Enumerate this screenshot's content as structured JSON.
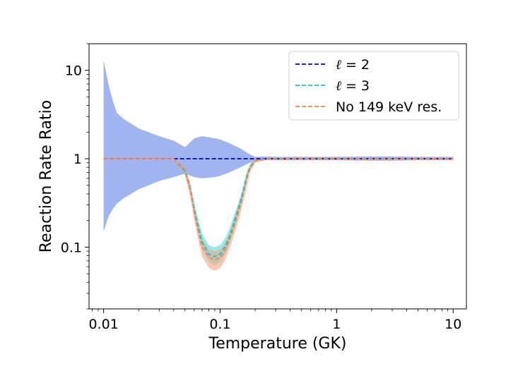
{
  "chart_data": {
    "type": "line",
    "title": "",
    "xlabel": "Temperature (GK)",
    "ylabel": "Reaction Rate Ratio",
    "xscale": "log",
    "yscale": "log",
    "xlim": [
      0.0075,
      13
    ],
    "ylim": [
      0.02,
      20
    ],
    "xticks": [
      0.01,
      0.1,
      1,
      10
    ],
    "xtick_labels": [
      "0.01",
      "0.1",
      "1",
      "10"
    ],
    "yticks": [
      0.1,
      1,
      10
    ],
    "ytick_labels": [
      "0.1",
      "1",
      "10"
    ],
    "legend_position": "top-right",
    "series": [
      {
        "name": "ℓ = 2",
        "legend_symbol": "ℓ",
        "legend_math": "= 2",
        "color": "#0000cc",
        "fill_color": "#4169e1",
        "fill_opacity": 0.5,
        "x": [
          0.01,
          0.011,
          0.012,
          0.013,
          0.015,
          0.02,
          0.03,
          0.04,
          0.05,
          0.06,
          0.07,
          0.08,
          0.09,
          0.1,
          0.12,
          0.15,
          0.18,
          0.2,
          0.25,
          0.3,
          0.5,
          1,
          2,
          3,
          5,
          10
        ],
        "center": [
          1,
          1,
          1,
          1,
          1,
          1,
          1,
          1,
          1,
          1,
          1,
          1,
          1,
          1,
          1,
          1,
          1,
          1,
          1,
          1,
          1,
          1,
          1,
          1,
          1,
          1
        ],
        "upper": [
          13,
          7,
          4.5,
          3.3,
          2.8,
          2.2,
          1.8,
          1.6,
          1.35,
          1.7,
          1.8,
          1.75,
          1.7,
          1.65,
          1.5,
          1.3,
          1.12,
          1.05,
          1.06,
          1.05,
          1.05,
          1.05,
          1.06,
          1.06,
          1.05,
          1.05
        ],
        "lower": [
          0.15,
          0.22,
          0.27,
          0.31,
          0.36,
          0.45,
          0.56,
          0.62,
          0.68,
          0.62,
          0.6,
          0.61,
          0.62,
          0.64,
          0.7,
          0.8,
          0.9,
          0.95,
          0.96,
          0.96,
          0.96,
          0.96,
          0.95,
          0.95,
          0.96,
          0.96
        ]
      },
      {
        "name": "ℓ = 3",
        "legend_symbol": "ℓ",
        "legend_math": "= 3",
        "color": "#00c8d8",
        "fill_color": "#3fd8d8",
        "fill_opacity": 0.55,
        "x": [
          0.04,
          0.05,
          0.055,
          0.06,
          0.065,
          0.07,
          0.08,
          0.09,
          0.1,
          0.11,
          0.12,
          0.13,
          0.15,
          0.17,
          0.18,
          0.2,
          0.25,
          0.3,
          0.5,
          1,
          2,
          5,
          10
        ],
        "center": [
          1,
          0.72,
          0.48,
          0.27,
          0.17,
          0.115,
          0.083,
          0.078,
          0.083,
          0.1,
          0.13,
          0.18,
          0.33,
          0.65,
          0.8,
          0.95,
          1,
          1,
          1,
          1,
          1,
          1,
          1
        ],
        "upper": [
          1,
          0.78,
          0.55,
          0.32,
          0.2,
          0.145,
          0.105,
          0.1,
          0.105,
          0.125,
          0.16,
          0.22,
          0.38,
          0.72,
          0.87,
          1.0,
          1.02,
          1.02,
          1.02,
          1.02,
          1.02,
          1.02,
          1.02
        ],
        "lower": [
          1,
          0.66,
          0.42,
          0.23,
          0.145,
          0.095,
          0.068,
          0.062,
          0.068,
          0.082,
          0.11,
          0.15,
          0.28,
          0.58,
          0.74,
          0.91,
          0.98,
          0.98,
          0.98,
          0.98,
          0.98,
          0.98,
          0.98
        ]
      },
      {
        "name": "No 149 keV res.",
        "color": "#ff7f50",
        "fill_color": "#f4a582",
        "fill_opacity": 0.6,
        "x": [
          0.01,
          0.02,
          0.03,
          0.04,
          0.05,
          0.055,
          0.06,
          0.065,
          0.07,
          0.08,
          0.09,
          0.1,
          0.11,
          0.12,
          0.13,
          0.15,
          0.17,
          0.18,
          0.2,
          0.25,
          0.3,
          0.5,
          1,
          2,
          5,
          10
        ],
        "center": [
          1,
          1,
          1,
          1,
          0.75,
          0.48,
          0.25,
          0.15,
          0.1,
          0.077,
          0.072,
          0.076,
          0.09,
          0.12,
          0.16,
          0.3,
          0.6,
          0.78,
          0.95,
          1,
          1,
          1,
          1,
          1,
          1,
          1
        ],
        "upper": [
          1.02,
          1.02,
          1.02,
          1.02,
          0.8,
          0.55,
          0.3,
          0.18,
          0.125,
          0.095,
          0.09,
          0.095,
          0.11,
          0.145,
          0.2,
          0.36,
          0.68,
          0.85,
          1.0,
          1.02,
          1.02,
          1.02,
          1.02,
          1.02,
          1.02,
          1.02
        ],
        "lower": [
          0.98,
          0.98,
          0.98,
          0.98,
          0.65,
          0.38,
          0.2,
          0.12,
          0.078,
          0.058,
          0.054,
          0.058,
          0.07,
          0.095,
          0.13,
          0.24,
          0.5,
          0.7,
          0.9,
          0.97,
          0.97,
          0.97,
          0.97,
          0.97,
          0.97,
          0.97
        ]
      }
    ]
  }
}
